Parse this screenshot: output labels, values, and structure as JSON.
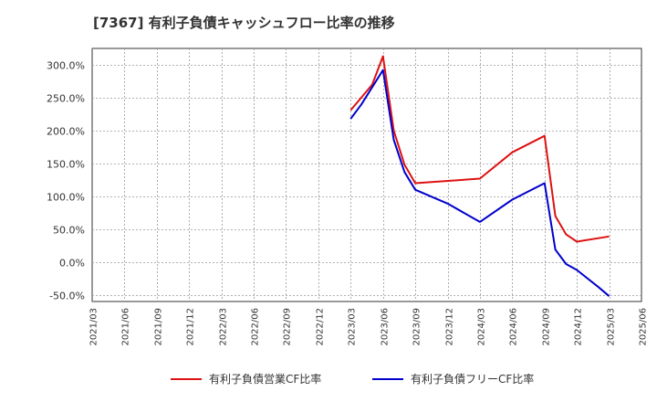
{
  "chart_data": {
    "type": "line",
    "title": "[7367]  有利子負債キャッシュフロー比率の推移",
    "xlabel": "",
    "ylabel": "",
    "ylim": [
      -60,
      325
    ],
    "y_ticks": [
      -50,
      0,
      50,
      100,
      150,
      200,
      250,
      300
    ],
    "y_tick_labels": [
      "-50.0%",
      "0.0%",
      "50.0%",
      "100.0%",
      "150.0%",
      "200.0%",
      "250.0%",
      "300.0%"
    ],
    "x_ticks": [
      "2021/03",
      "2021/06",
      "2021/09",
      "2021/12",
      "2022/03",
      "2022/06",
      "2022/09",
      "2022/12",
      "2023/03",
      "2023/06",
      "2023/09",
      "2023/12",
      "2024/03",
      "2024/06",
      "2024/09",
      "2024/12",
      "2025/03",
      "2025/06"
    ],
    "grid": true,
    "legend_position": "bottom",
    "series": [
      {
        "name": "有利子負債営業CF比率",
        "color": "#dd1111",
        "points": [
          {
            "x": "2023/03",
            "y": 231
          },
          {
            "x": "2023/05",
            "y": 270
          },
          {
            "x": "2023/06",
            "y": 313
          },
          {
            "x": "2023/07",
            "y": 200
          },
          {
            "x": "2023/08",
            "y": 148
          },
          {
            "x": "2023/09",
            "y": 120
          },
          {
            "x": "2024/03",
            "y": 127
          },
          {
            "x": "2024/06",
            "y": 167
          },
          {
            "x": "2024/09",
            "y": 192
          },
          {
            "x": "2024/10",
            "y": 70
          },
          {
            "x": "2024/11",
            "y": 42
          },
          {
            "x": "2024/12",
            "y": 31
          },
          {
            "x": "2025/03",
            "y": 39
          }
        ]
      },
      {
        "name": "有利子負債フリーCF比率",
        "color": "#0000cc",
        "points": [
          {
            "x": "2023/03",
            "y": 218
          },
          {
            "x": "2023/04",
            "y": 240
          },
          {
            "x": "2023/06",
            "y": 292
          },
          {
            "x": "2023/07",
            "y": 186
          },
          {
            "x": "2023/08",
            "y": 137
          },
          {
            "x": "2023/09",
            "y": 110
          },
          {
            "x": "2023/12",
            "y": 89
          },
          {
            "x": "2024/03",
            "y": 61
          },
          {
            "x": "2024/06",
            "y": 95
          },
          {
            "x": "2024/09",
            "y": 120
          },
          {
            "x": "2024/10",
            "y": 19
          },
          {
            "x": "2024/11",
            "y": -3
          },
          {
            "x": "2024/12",
            "y": -12
          },
          {
            "x": "2025/02",
            "y": -38
          },
          {
            "x": "2025/03",
            "y": -52
          }
        ]
      }
    ]
  }
}
